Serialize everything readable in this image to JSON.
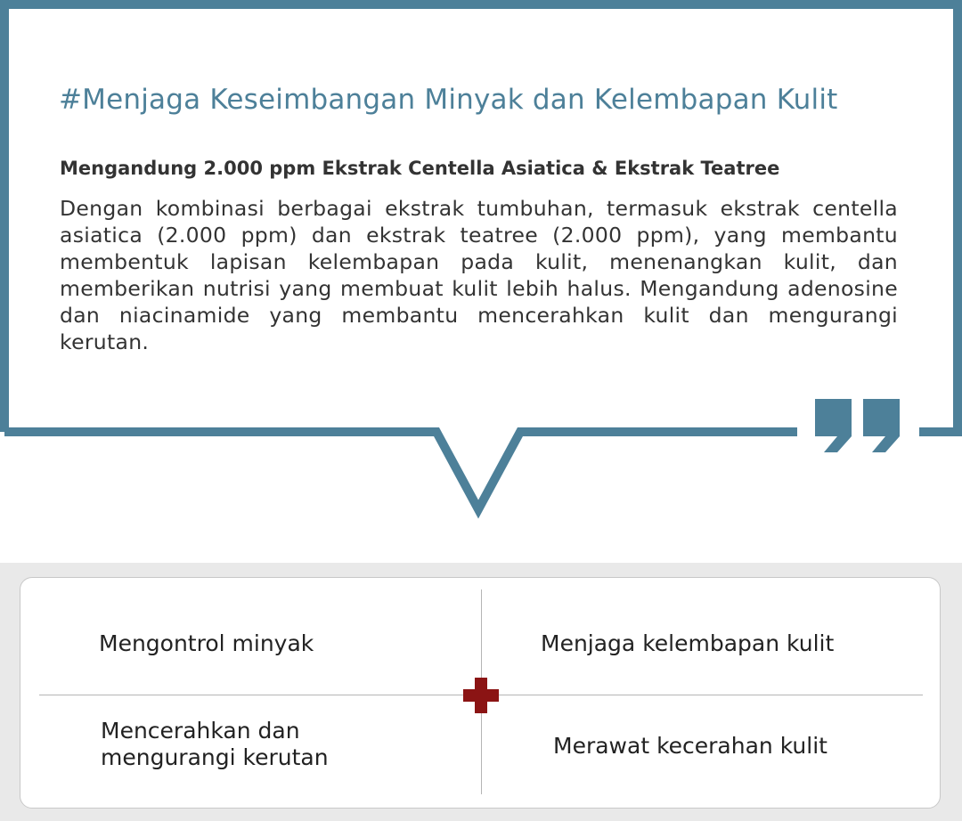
{
  "colors": {
    "accent": "#4d8099",
    "cross": "#8b1414",
    "text": "#333333"
  },
  "header": {
    "title": "#Menjaga Keseimbangan Minyak dan Kelembapan Kulit"
  },
  "content": {
    "subtitle": "Mengandung 2.000 ppm Ekstrak Centella Asiatica & Ekstrak Teatree",
    "body": "Dengan kombinasi berbagai ekstrak tumbuhan, termasuk ekstrak centella asiatica (2.000 ppm) dan ekstrak teatree (2.000 ppm), yang membantu membentuk lapisan kelembapan pada kulit, menenangkan kulit, dan memberikan nutrisi yang membuat kulit lebih halus. Mengandung adenosine dan niacinamide yang membantu mencerahkan kulit dan mengurangi kerutan."
  },
  "benefits": [
    {
      "label": "Mengontrol minyak"
    },
    {
      "label": "Menjaga kelembapan kulit"
    },
    {
      "label": "Mencerahkan dan mengurangi kerutan"
    },
    {
      "label": "Merawat kecerahan kulit"
    }
  ],
  "icons": {
    "quote": "closing-quote-icon",
    "cross": "plus-cross-icon"
  }
}
